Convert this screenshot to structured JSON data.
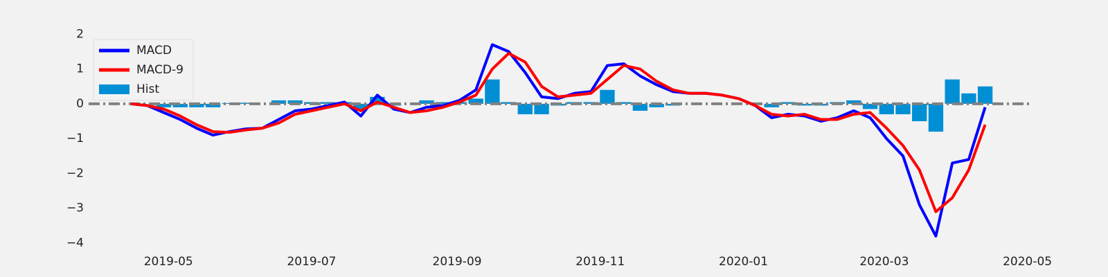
{
  "chart_data": {
    "type": "line",
    "x": [
      "2019-04-15",
      "2019-04-22",
      "2019-04-29",
      "2019-05-06",
      "2019-05-13",
      "2019-05-20",
      "2019-05-27",
      "2019-06-03",
      "2019-06-10",
      "2019-06-17",
      "2019-06-24",
      "2019-07-01",
      "2019-07-08",
      "2019-07-15",
      "2019-07-22",
      "2019-07-29",
      "2019-08-05",
      "2019-08-12",
      "2019-08-19",
      "2019-08-26",
      "2019-09-02",
      "2019-09-09",
      "2019-09-16",
      "2019-09-23",
      "2019-09-30",
      "2019-10-07",
      "2019-10-14",
      "2019-10-21",
      "2019-10-28",
      "2019-11-04",
      "2019-11-11",
      "2019-11-18",
      "2019-11-25",
      "2019-12-02",
      "2019-12-09",
      "2019-12-16",
      "2019-12-23",
      "2019-12-30",
      "2020-01-06",
      "2020-01-13",
      "2020-01-20",
      "2020-01-27",
      "2020-02-03",
      "2020-02-10",
      "2020-02-17",
      "2020-02-24",
      "2020-03-02",
      "2020-03-09",
      "2020-03-16",
      "2020-03-23",
      "2020-03-30",
      "2020-04-06",
      "2020-04-13"
    ],
    "series": [
      {
        "name": "MACD",
        "type": "line",
        "color": "#0000ff",
        "values": [
          0.0,
          -0.05,
          -0.25,
          -0.45,
          -0.7,
          -0.9,
          -0.8,
          -0.72,
          -0.7,
          -0.45,
          -0.2,
          -0.15,
          -0.05,
          0.05,
          -0.35,
          0.25,
          -0.15,
          -0.25,
          -0.1,
          -0.05,
          0.1,
          0.4,
          1.7,
          1.5,
          0.9,
          0.2,
          0.15,
          0.3,
          0.35,
          1.1,
          1.15,
          0.8,
          0.55,
          0.35,
          0.3,
          0.3,
          0.25,
          0.15,
          -0.05,
          -0.4,
          -0.3,
          -0.35,
          -0.5,
          -0.4,
          -0.2,
          -0.4,
          -1.0,
          -1.5,
          -2.9,
          -3.8,
          -1.7,
          -1.6,
          -0.1
        ]
      },
      {
        "name": "MACD-9",
        "type": "line",
        "color": "#ff0000",
        "values": [
          0.0,
          -0.05,
          -0.15,
          -0.35,
          -0.6,
          -0.8,
          -0.82,
          -0.75,
          -0.7,
          -0.55,
          -0.3,
          -0.2,
          -0.1,
          0.0,
          -0.2,
          0.05,
          -0.1,
          -0.25,
          -0.2,
          -0.1,
          0.05,
          0.25,
          1.0,
          1.45,
          1.2,
          0.5,
          0.2,
          0.25,
          0.3,
          0.7,
          1.1,
          1.0,
          0.65,
          0.4,
          0.3,
          0.3,
          0.25,
          0.15,
          -0.05,
          -0.3,
          -0.35,
          -0.3,
          -0.45,
          -0.45,
          -0.3,
          -0.25,
          -0.7,
          -1.2,
          -1.9,
          -3.1,
          -2.7,
          -1.9,
          -0.6
        ]
      },
      {
        "name": "Hist",
        "type": "bar",
        "color": "#008fd5",
        "values": [
          0.0,
          0.0,
          -0.1,
          -0.1,
          -0.1,
          -0.1,
          0.02,
          0.03,
          0.0,
          0.1,
          0.1,
          0.05,
          0.05,
          0.05,
          -0.15,
          0.2,
          -0.05,
          0.0,
          0.1,
          0.05,
          0.05,
          0.15,
          0.7,
          0.05,
          -0.3,
          -0.3,
          -0.05,
          0.05,
          0.05,
          0.4,
          0.05,
          -0.2,
          -0.1,
          -0.05,
          0.0,
          0.0,
          0.0,
          0.0,
          0.0,
          -0.1,
          0.05,
          -0.05,
          -0.05,
          0.05,
          0.1,
          -0.15,
          -0.3,
          -0.3,
          -0.5,
          -0.8,
          0.7,
          0.3,
          0.5
        ]
      }
    ],
    "hline": {
      "value": 0,
      "color": "#808080"
    },
    "xlim": [
      "2019-03-28",
      "2020-05-02"
    ],
    "xticks": [
      "2019-05",
      "2019-07",
      "2019-09",
      "2019-11",
      "2020-01",
      "2020-03",
      "2020-05"
    ],
    "ylim": [
      -4.2,
      2.4
    ],
    "yticks": [
      {
        "value": -4,
        "label": "−4"
      },
      {
        "value": -3,
        "label": "−3"
      },
      {
        "value": -2,
        "label": "−2"
      },
      {
        "value": -1,
        "label": "−1"
      },
      0,
      1,
      2
    ],
    "grid": false,
    "legend": "upper left"
  }
}
